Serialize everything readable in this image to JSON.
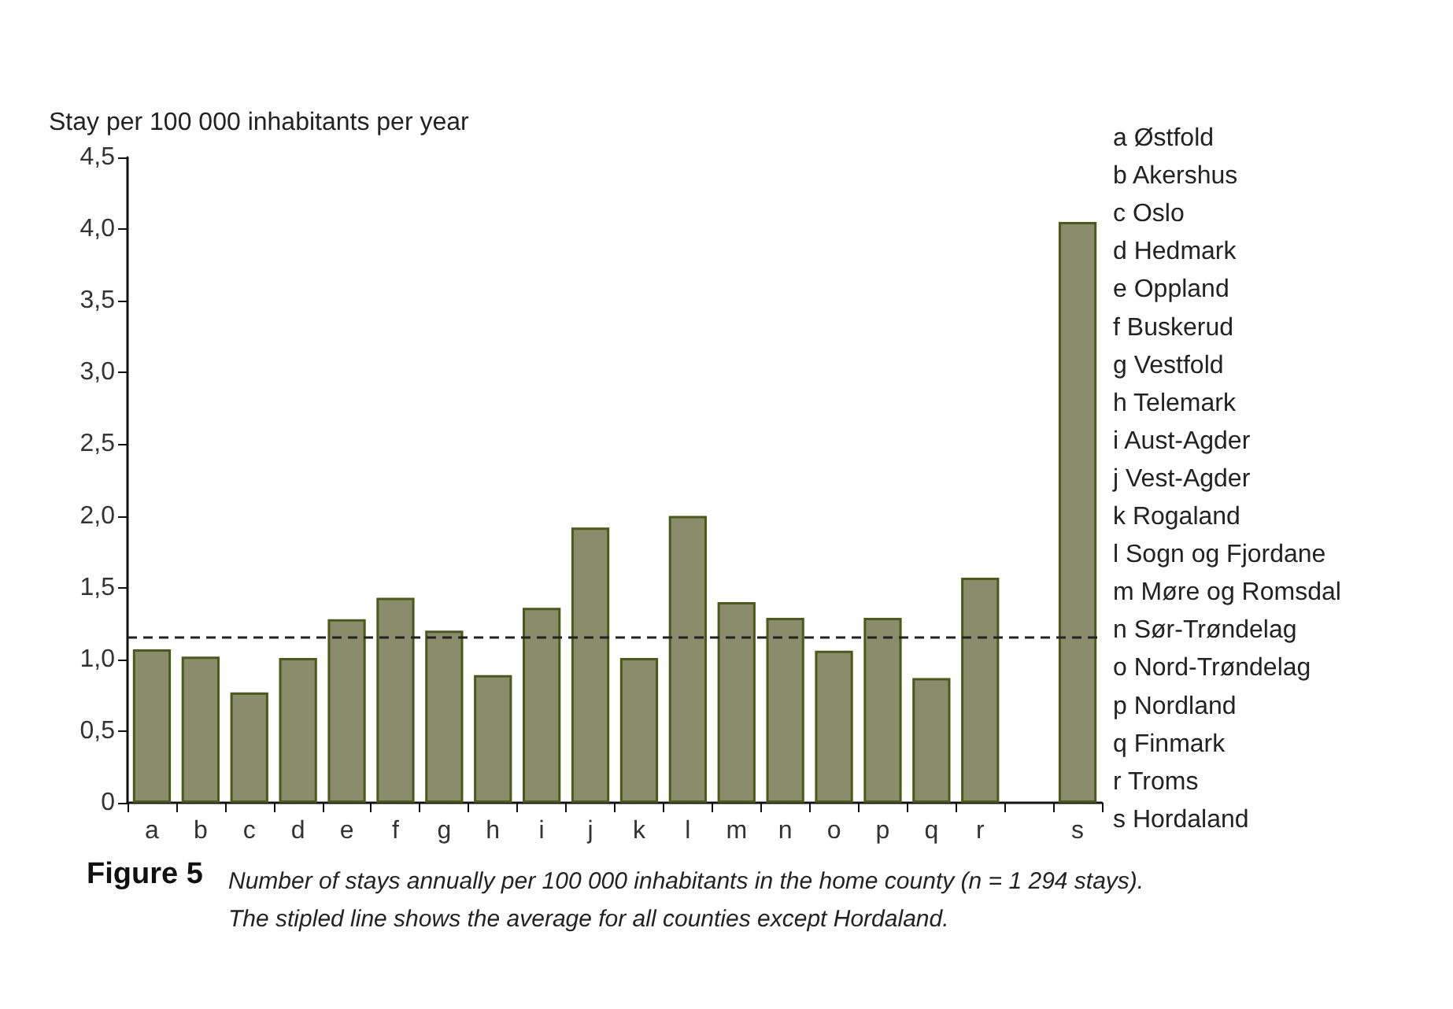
{
  "chart_data": {
    "type": "bar",
    "title": "Figure 5",
    "subtitle": "Number of stays annually per 100 000 inhabitants in the home county (n = 1 294 stays).\nThe stipled line shows the average for all counties except Hordaland.",
    "ylabel": "Stay per 100 000 inhabitants per year",
    "categories": [
      "a",
      "b",
      "c",
      "d",
      "e",
      "f",
      "g",
      "h",
      "i",
      "j",
      "k",
      "l",
      "m",
      "n",
      "o",
      "p",
      "q",
      "r",
      null,
      "s"
    ],
    "values": [
      1.07,
      1.02,
      0.77,
      1.01,
      1.28,
      1.43,
      1.2,
      0.89,
      1.36,
      1.92,
      1.01,
      2.0,
      1.4,
      1.29,
      1.06,
      1.29,
      0.87,
      1.57,
      null,
      4.05
    ],
    "color": "#8b8c6b",
    "ylim": [
      0,
      4.5
    ],
    "yticks": [
      0,
      {
        "value": 0.5,
        "label": "0,5"
      },
      {
        "value": 1,
        "label": "1,0"
      },
      {
        "value": 1.5,
        "label": "1,5"
      },
      {
        "value": 2,
        "label": "2,0"
      },
      {
        "value": 2.5,
        "label": "2,5"
      },
      {
        "value": 3,
        "label": "3,0"
      },
      {
        "value": 3.5,
        "label": "3,5"
      },
      {
        "value": 4,
        "label": "4,0"
      },
      {
        "value": 4.5,
        "label": "4,5"
      }
    ],
    "ref_lines": [
      {
        "axis": "y",
        "value": 1.15,
        "color": "#222222",
        "line_style": "dashed"
      }
    ],
    "grid": false,
    "annotations": [
      "a Østfold",
      "b Akershus",
      "c Oslo",
      "d Hedmark",
      "e Oppland",
      "f Buskerud",
      "g Vestfold",
      "h Telemark",
      "i Aust-Agder",
      "j Vest-Agder",
      "k Rogaland",
      "l Sogn og Fjordane",
      "m Møre og Romsdal",
      "n Sør-Trøndelag",
      "o Nord-Trøndelag",
      "p Nordland",
      "q Finmark",
      "r Troms",
      "s Hordaland"
    ]
  }
}
